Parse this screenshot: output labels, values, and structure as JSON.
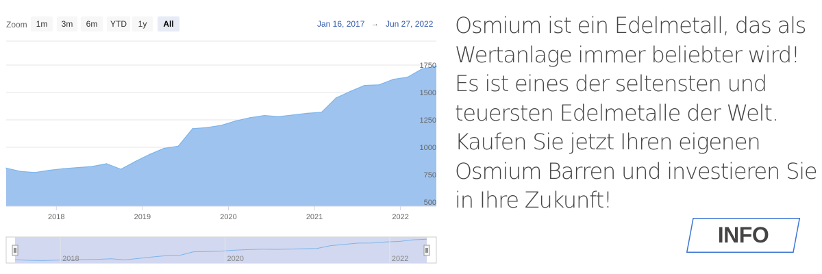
{
  "zoom": {
    "label": "Zoom",
    "buttons": [
      "1m",
      "3m",
      "6m",
      "YTD",
      "1y",
      "All"
    ],
    "active": "All"
  },
  "range": {
    "from": "Jan 16, 2017",
    "arrow": "→",
    "to": "Jun 27, 2022"
  },
  "promo_text": "Osmium ist ein Edelmetall, das als Wertanlage immer beliebter wird! Es ist eines der seltensten und teuersten Edelmetalle der Welt. Kaufen Sie jetzt Ihren eigenen Osmium Barren und investieren Sie in Ihre Zukunft!",
  "info_button": "INFO",
  "colors": {
    "series_line": "#7cb5ec",
    "series_fill": "#9ec3ee",
    "navigator_mask": "#d2d8ef",
    "link_blue": "#335cad",
    "info_border": "#3b76d4"
  },
  "chart_data": {
    "type": "area",
    "x_ticks": [
      "2018",
      "2019",
      "2020",
      "2021",
      "2022"
    ],
    "y_ticks": [
      "500",
      "750",
      "1000",
      "1250",
      "1500",
      "1750"
    ],
    "ylim": [
      500,
      1750
    ],
    "x_range": [
      "2017-06",
      "2022-06"
    ],
    "navigator_ticks": [
      "2018",
      "2020",
      "2022"
    ],
    "series": [
      {
        "x": [
          "2017-06",
          "2017-08",
          "2017-10",
          "2017-12",
          "2018-02",
          "2018-04",
          "2018-06",
          "2018-08",
          "2018-10",
          "2018-12",
          "2019-02",
          "2019-04",
          "2019-06",
          "2019-08",
          "2019-10",
          "2019-12",
          "2020-02",
          "2020-04",
          "2020-06",
          "2020-08",
          "2020-10",
          "2020-12",
          "2021-02",
          "2021-04",
          "2021-06",
          "2021-08",
          "2021-10",
          "2021-12",
          "2022-02",
          "2022-04",
          "2022-06"
        ],
        "values": [
          810,
          780,
          770,
          790,
          805,
          815,
          825,
          850,
          800,
          870,
          935,
          990,
          1010,
          1170,
          1180,
          1200,
          1240,
          1270,
          1290,
          1280,
          1295,
          1310,
          1320,
          1450,
          1510,
          1565,
          1570,
          1620,
          1640,
          1715,
          1740
        ]
      }
    ]
  }
}
